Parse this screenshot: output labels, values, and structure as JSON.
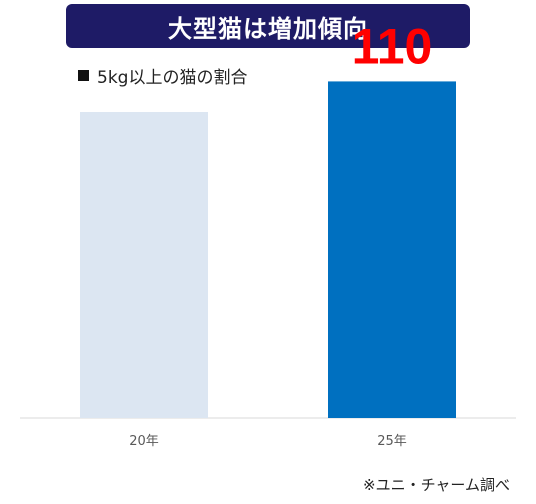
{
  "title": "大型猫は増加傾向",
  "subtitle": "5kg以上の猫の割合",
  "source_note": "※ユニ・チャーム調べ",
  "colors": {
    "banner_bg": "#1e1b66",
    "bar_light": "#dce6f2",
    "bar_dark": "#0070c0",
    "value_label": "#ff0000",
    "axis": "#d9d9d9",
    "tick_text": "#595959"
  },
  "chart_data": {
    "type": "bar",
    "categories": [
      "20年",
      "25年"
    ],
    "values": [
      100,
      110
    ],
    "data_labels": [
      "",
      "110"
    ],
    "bar_colors": [
      "#dce6f2",
      "#0070c0"
    ],
    "title": "",
    "xlabel": "",
    "ylabel": "",
    "ylim": [
      0,
      117
    ],
    "grid": false,
    "legend": "none"
  }
}
